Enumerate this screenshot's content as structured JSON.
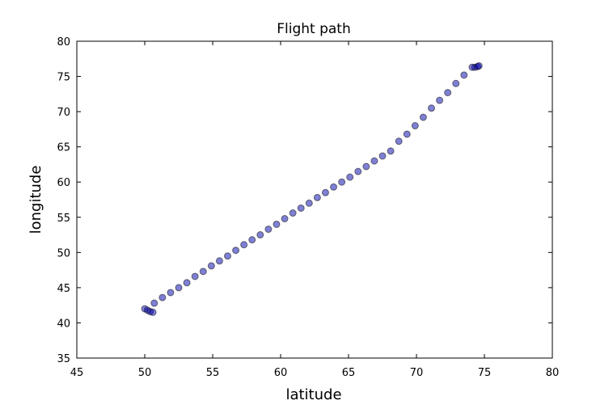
{
  "chart_data": {
    "type": "scatter",
    "title": "Flight path",
    "xlabel": "latitude",
    "ylabel": "longitude",
    "xlim": [
      45,
      80
    ],
    "ylim": [
      35,
      80
    ],
    "xticks": [
      45,
      50,
      55,
      60,
      65,
      70,
      75,
      80
    ],
    "yticks": [
      35,
      40,
      45,
      50,
      55,
      60,
      65,
      70,
      75,
      80
    ],
    "grid": false,
    "marker_color": "#0000aa",
    "points": [
      [
        50.0,
        42.0
      ],
      [
        50.2,
        41.8
      ],
      [
        50.4,
        41.6
      ],
      [
        50.6,
        41.5
      ],
      [
        50.7,
        42.8
      ],
      [
        51.3,
        43.6
      ],
      [
        51.9,
        44.3
      ],
      [
        52.5,
        45.0
      ],
      [
        53.1,
        45.7
      ],
      [
        53.7,
        46.6
      ],
      [
        54.3,
        47.3
      ],
      [
        54.9,
        48.1
      ],
      [
        55.5,
        48.8
      ],
      [
        56.1,
        49.5
      ],
      [
        56.7,
        50.3
      ],
      [
        57.3,
        51.1
      ],
      [
        57.9,
        51.8
      ],
      [
        58.5,
        52.5
      ],
      [
        59.1,
        53.3
      ],
      [
        59.7,
        54.0
      ],
      [
        60.3,
        54.8
      ],
      [
        60.9,
        55.6
      ],
      [
        61.5,
        56.3
      ],
      [
        62.1,
        57.0
      ],
      [
        62.7,
        57.8
      ],
      [
        63.3,
        58.5
      ],
      [
        63.9,
        59.3
      ],
      [
        64.5,
        60.0
      ],
      [
        65.1,
        60.7
      ],
      [
        65.7,
        61.5
      ],
      [
        66.3,
        62.2
      ],
      [
        66.9,
        63.0
      ],
      [
        67.5,
        63.7
      ],
      [
        68.1,
        64.4
      ],
      [
        68.7,
        65.8
      ],
      [
        69.3,
        66.8
      ],
      [
        69.9,
        68.0
      ],
      [
        70.5,
        69.2
      ],
      [
        71.1,
        70.5
      ],
      [
        71.7,
        71.6
      ],
      [
        72.3,
        72.7
      ],
      [
        72.9,
        74.0
      ],
      [
        73.5,
        75.2
      ],
      [
        74.1,
        76.3
      ],
      [
        74.3,
        76.3
      ],
      [
        74.5,
        76.4
      ],
      [
        74.6,
        76.5
      ]
    ]
  }
}
